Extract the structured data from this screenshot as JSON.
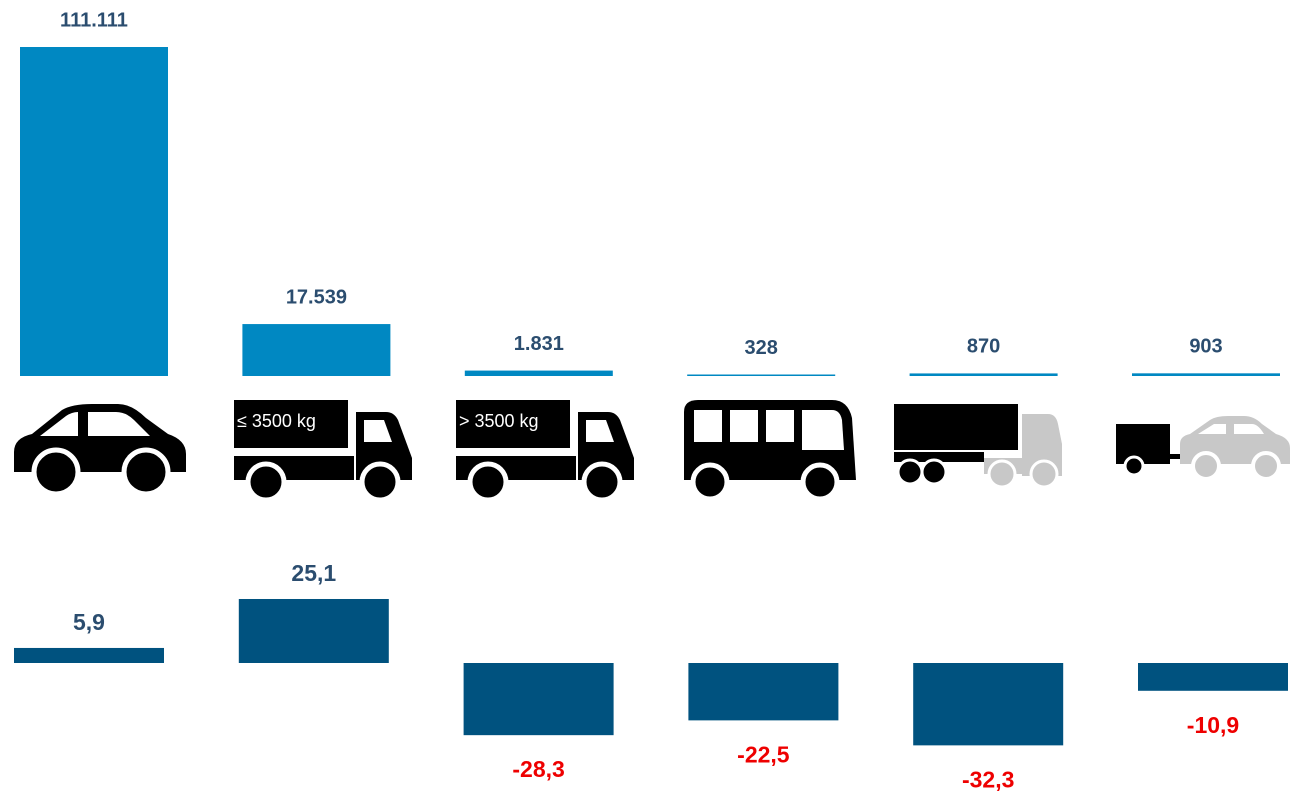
{
  "chart_data": [
    {
      "type": "bar",
      "color": "#0088c2",
      "categories": [
        null,
        "≤ 3500 kg",
        "> 3500 kg",
        null,
        null,
        null
      ],
      "values": [
        111111,
        17539,
        1831,
        328,
        870,
        903
      ],
      "value_labels": [
        "111.111",
        "17.539",
        "1.831",
        "328",
        "870",
        "903"
      ]
    },
    {
      "type": "bar",
      "color": "#00527f",
      "negative_label_color": "#ee0000",
      "values": [
        5.9,
        25.1,
        -28.3,
        -22.5,
        -32.3,
        -10.9
      ],
      "value_labels": [
        "5,9",
        "25,1",
        "-28,3",
        "-22,5",
        "-32,3",
        "-10,9"
      ]
    }
  ]
}
